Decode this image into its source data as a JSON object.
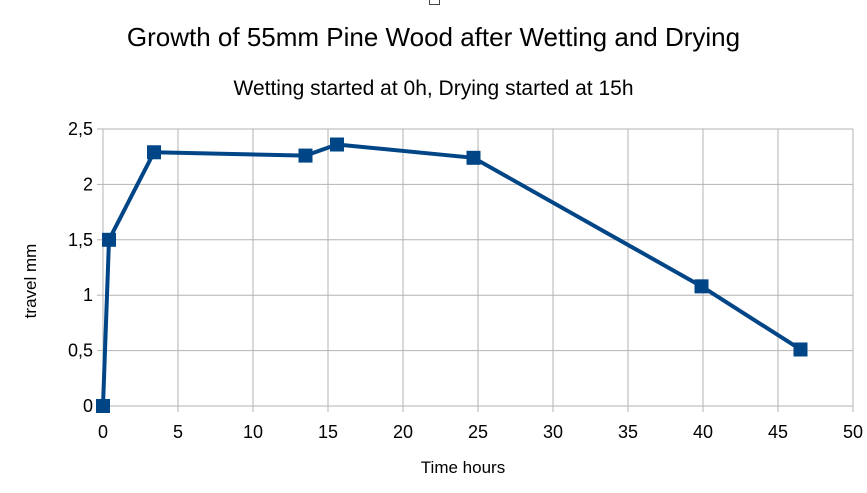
{
  "chart_data": {
    "type": "line",
    "title": "Growth of 55mm Pine Wood after Wetting and Drying",
    "subtitle": "Wetting started at 0h, Drying started at 15h",
    "xlabel": "Time hours",
    "ylabel": "travel mm",
    "xlim": [
      0,
      50
    ],
    "ylim": [
      0,
      2.5
    ],
    "x_ticks": [
      "0",
      "5",
      "10",
      "15",
      "20",
      "25",
      "30",
      "35",
      "40",
      "45",
      "50"
    ],
    "y_ticks": [
      "0",
      "0,5",
      "1",
      "1,5",
      "2",
      "2,5"
    ],
    "grid": true,
    "legend": "none",
    "colors": {
      "series": "#004586",
      "grid": "#b3b3b3"
    },
    "series": [
      {
        "x": [
          0,
          0.4,
          3.4,
          13.5,
          15.6,
          24.7,
          39.9,
          46.5
        ],
        "y": [
          0,
          1.5,
          2.29,
          2.26,
          2.36,
          2.24,
          1.08,
          0.51
        ]
      }
    ]
  }
}
